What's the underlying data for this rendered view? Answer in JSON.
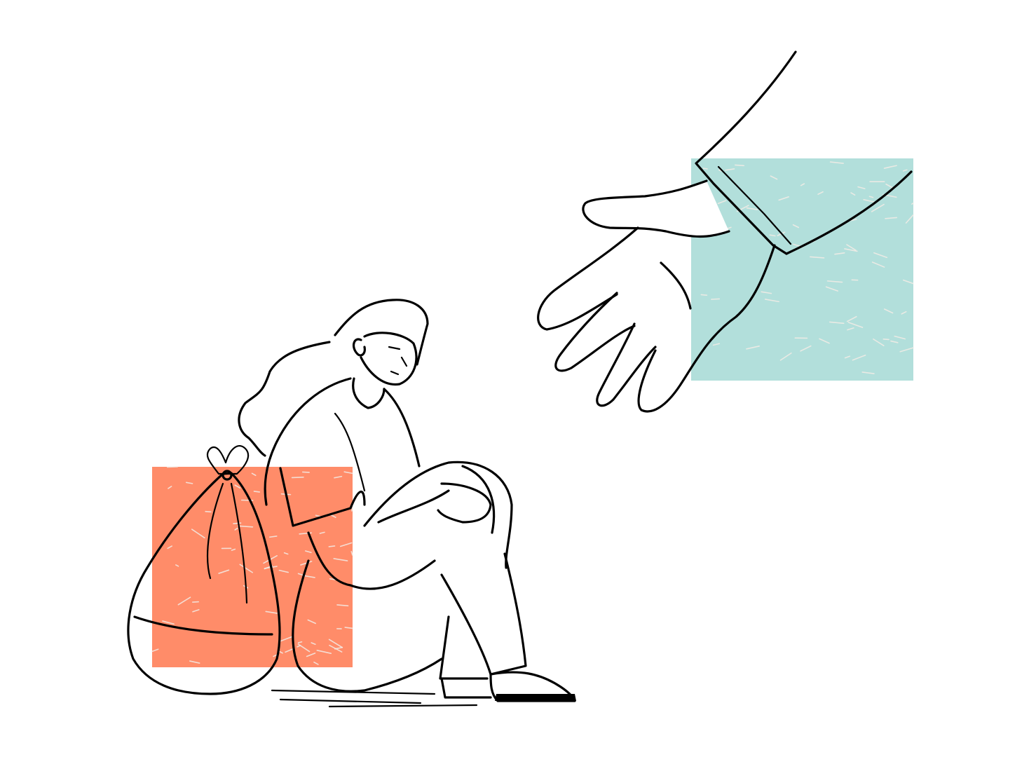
{
  "illustration": {
    "colors": {
      "background": "#ffffff",
      "ink": "#000000",
      "orange_block": "#FF8C69",
      "teal_block": "#B2DFDB",
      "texture": "#f3ece6"
    },
    "elements": [
      "seated-woman",
      "tied-sack",
      "helping-hand",
      "orange-block",
      "teal-block"
    ]
  }
}
